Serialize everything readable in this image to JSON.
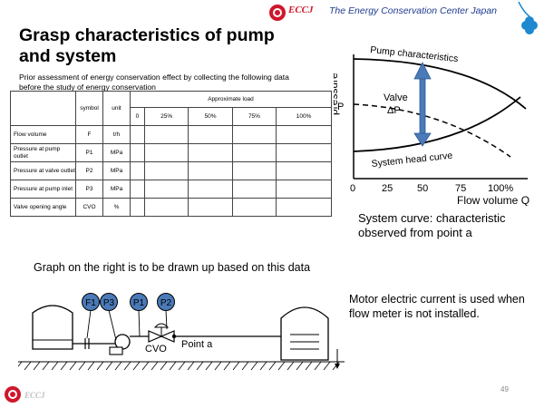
{
  "header": {
    "brand": "ECCJ",
    "org_name": "The Energy Conservation Center Japan"
  },
  "title": "Grasp characteristics of pump and system",
  "intro_text": "Prior assessment of energy conservation effect by collecting the following data before the study of energy conservation",
  "table": {
    "col_symbol": "symbol",
    "col_unit": "unit",
    "col_group": "Approximate load",
    "load_levels": [
      "0",
      "25%",
      "50%",
      "75%",
      "100%"
    ],
    "rows": [
      {
        "label": "Flow volume",
        "symbol": "F",
        "unit": "t/h"
      },
      {
        "label": "Pressure at pump outlet",
        "symbol": "P1",
        "unit": "MPa"
      },
      {
        "label": "Pressure at valve outlet",
        "symbol": "P2",
        "unit": "MPa"
      },
      {
        "label": "Pressure at pump inlet",
        "symbol": "P3",
        "unit": "MPa"
      },
      {
        "label": "Valve opening angle",
        "symbol": "CVO",
        "unit": "%"
      }
    ]
  },
  "chart": {
    "ylabel": "pressure",
    "ylabel_p": "P",
    "xlabel": "Flow volume Q",
    "x_ticks": [
      "0",
      "25",
      "50",
      "75",
      "100%"
    ],
    "pump_curve_label": "Pump characteristics",
    "system_curve_label": "System head curve",
    "valve_label": "Valve",
    "delta_p_label": "ΔP",
    "arrow_color": "#4a7ab8"
  },
  "system_note": "System curve: characteristic observed from point a",
  "graph_note": "Graph on the right is to be drawn up based on this data",
  "motor_note": "Motor electric current is used when flow meter is not installed.",
  "diagram": {
    "instruments": [
      "F1",
      "P3",
      "P1",
      "P2"
    ],
    "valve_label": "CVO",
    "point_label": "Point a",
    "instrument_color": "#4a7ab8"
  },
  "footer": {
    "brand": "ECCJ",
    "page_number": "49"
  }
}
